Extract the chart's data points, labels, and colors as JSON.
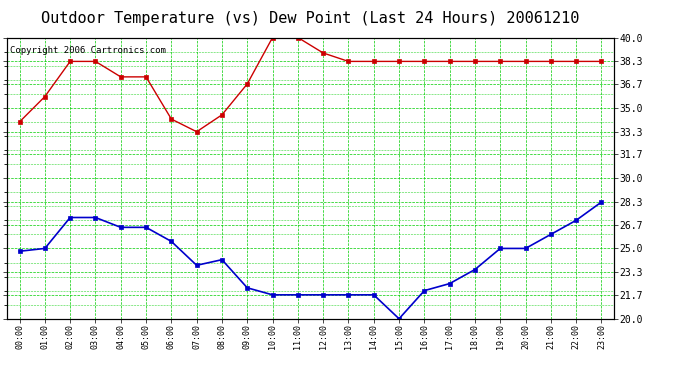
{
  "title": "Outdoor Temperature (vs) Dew Point (Last 24 Hours) 20061210",
  "copyright": "Copyright 2006 Cartronics.com",
  "x_labels": [
    "00:00",
    "01:00",
    "02:00",
    "03:00",
    "04:00",
    "05:00",
    "06:00",
    "07:00",
    "08:00",
    "09:00",
    "10:00",
    "11:00",
    "12:00",
    "13:00",
    "14:00",
    "15:00",
    "16:00",
    "17:00",
    "18:00",
    "19:00",
    "20:00",
    "21:00",
    "22:00",
    "23:00"
  ],
  "temp_data": [
    34.0,
    35.8,
    38.3,
    38.3,
    37.2,
    37.2,
    34.2,
    33.3,
    34.5,
    36.7,
    40.0,
    40.0,
    38.9,
    38.3,
    38.3,
    38.3,
    38.3,
    38.3,
    38.3,
    38.3,
    38.3,
    38.3,
    38.3,
    38.3
  ],
  "dew_data": [
    24.8,
    25.0,
    27.2,
    27.2,
    26.5,
    26.5,
    25.5,
    23.8,
    24.2,
    22.2,
    21.7,
    21.7,
    21.7,
    21.7,
    21.7,
    20.0,
    22.0,
    22.5,
    23.5,
    25.0,
    25.0,
    26.0,
    27.0,
    28.3
  ],
  "temp_color": "#cc0000",
  "dew_color": "#0000cc",
  "grid_color": "#00cc00",
  "bg_color": "#ffffff",
  "plot_bg": "#ffffff",
  "ylim_min": 20.0,
  "ylim_max": 40.0,
  "yticks": [
    20.0,
    21.7,
    23.3,
    25.0,
    26.7,
    28.3,
    30.0,
    31.7,
    33.3,
    35.0,
    36.7,
    38.3,
    40.0
  ],
  "title_fontsize": 11,
  "copyright_fontsize": 6.5
}
